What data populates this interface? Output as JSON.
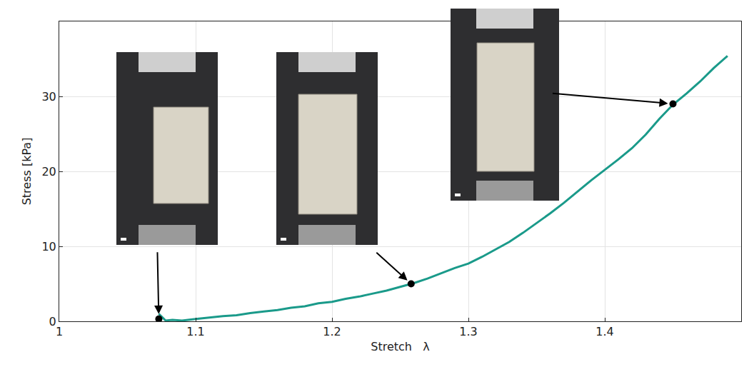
{
  "chart_data": {
    "type": "line",
    "x_label": "Stretch   λ",
    "y_label": "Stress [kPa]",
    "xlim": [
      1,
      1.5
    ],
    "xticks": [
      1,
      1.1,
      1.2,
      1.3,
      1.4
    ],
    "ylim": [
      0,
      40
    ],
    "yticks": [
      0,
      10,
      20,
      30
    ],
    "grid": true,
    "series": [
      {
        "type": "line",
        "color": "#1a9a8a",
        "line_style": "solid",
        "x": [
          1.073,
          1.078,
          1.083,
          1.09,
          1.1,
          1.11,
          1.12,
          1.13,
          1.14,
          1.15,
          1.16,
          1.17,
          1.18,
          1.19,
          1.2,
          1.21,
          1.22,
          1.23,
          1.24,
          1.25,
          1.26,
          1.27,
          1.28,
          1.29,
          1.3,
          1.31,
          1.32,
          1.33,
          1.34,
          1.35,
          1.36,
          1.37,
          1.38,
          1.39,
          1.4,
          1.41,
          1.42,
          1.43,
          1.44,
          1.45,
          1.46,
          1.47,
          1.48,
          1.49
        ],
        "values": [
          1.0,
          0.1,
          0.2,
          0.1,
          0.3,
          0.5,
          0.7,
          0.8,
          1.1,
          1.3,
          1.5,
          1.8,
          2.0,
          2.4,
          2.6,
          3.0,
          3.3,
          3.7,
          4.1,
          4.6,
          5.1,
          5.7,
          6.4,
          7.1,
          7.7,
          8.6,
          9.6,
          10.6,
          11.8,
          13.1,
          14.4,
          15.8,
          17.3,
          18.8,
          20.2,
          21.6,
          23.1,
          24.9,
          27.0,
          28.9,
          30.4,
          32.0,
          33.8,
          35.4
        ]
      },
      {
        "type": "scatter",
        "color": "#000000",
        "marker": "circle",
        "x": [
          1.073,
          1.258,
          1.45
        ],
        "values": [
          0.3,
          5.0,
          29.0
        ]
      }
    ]
  }
}
